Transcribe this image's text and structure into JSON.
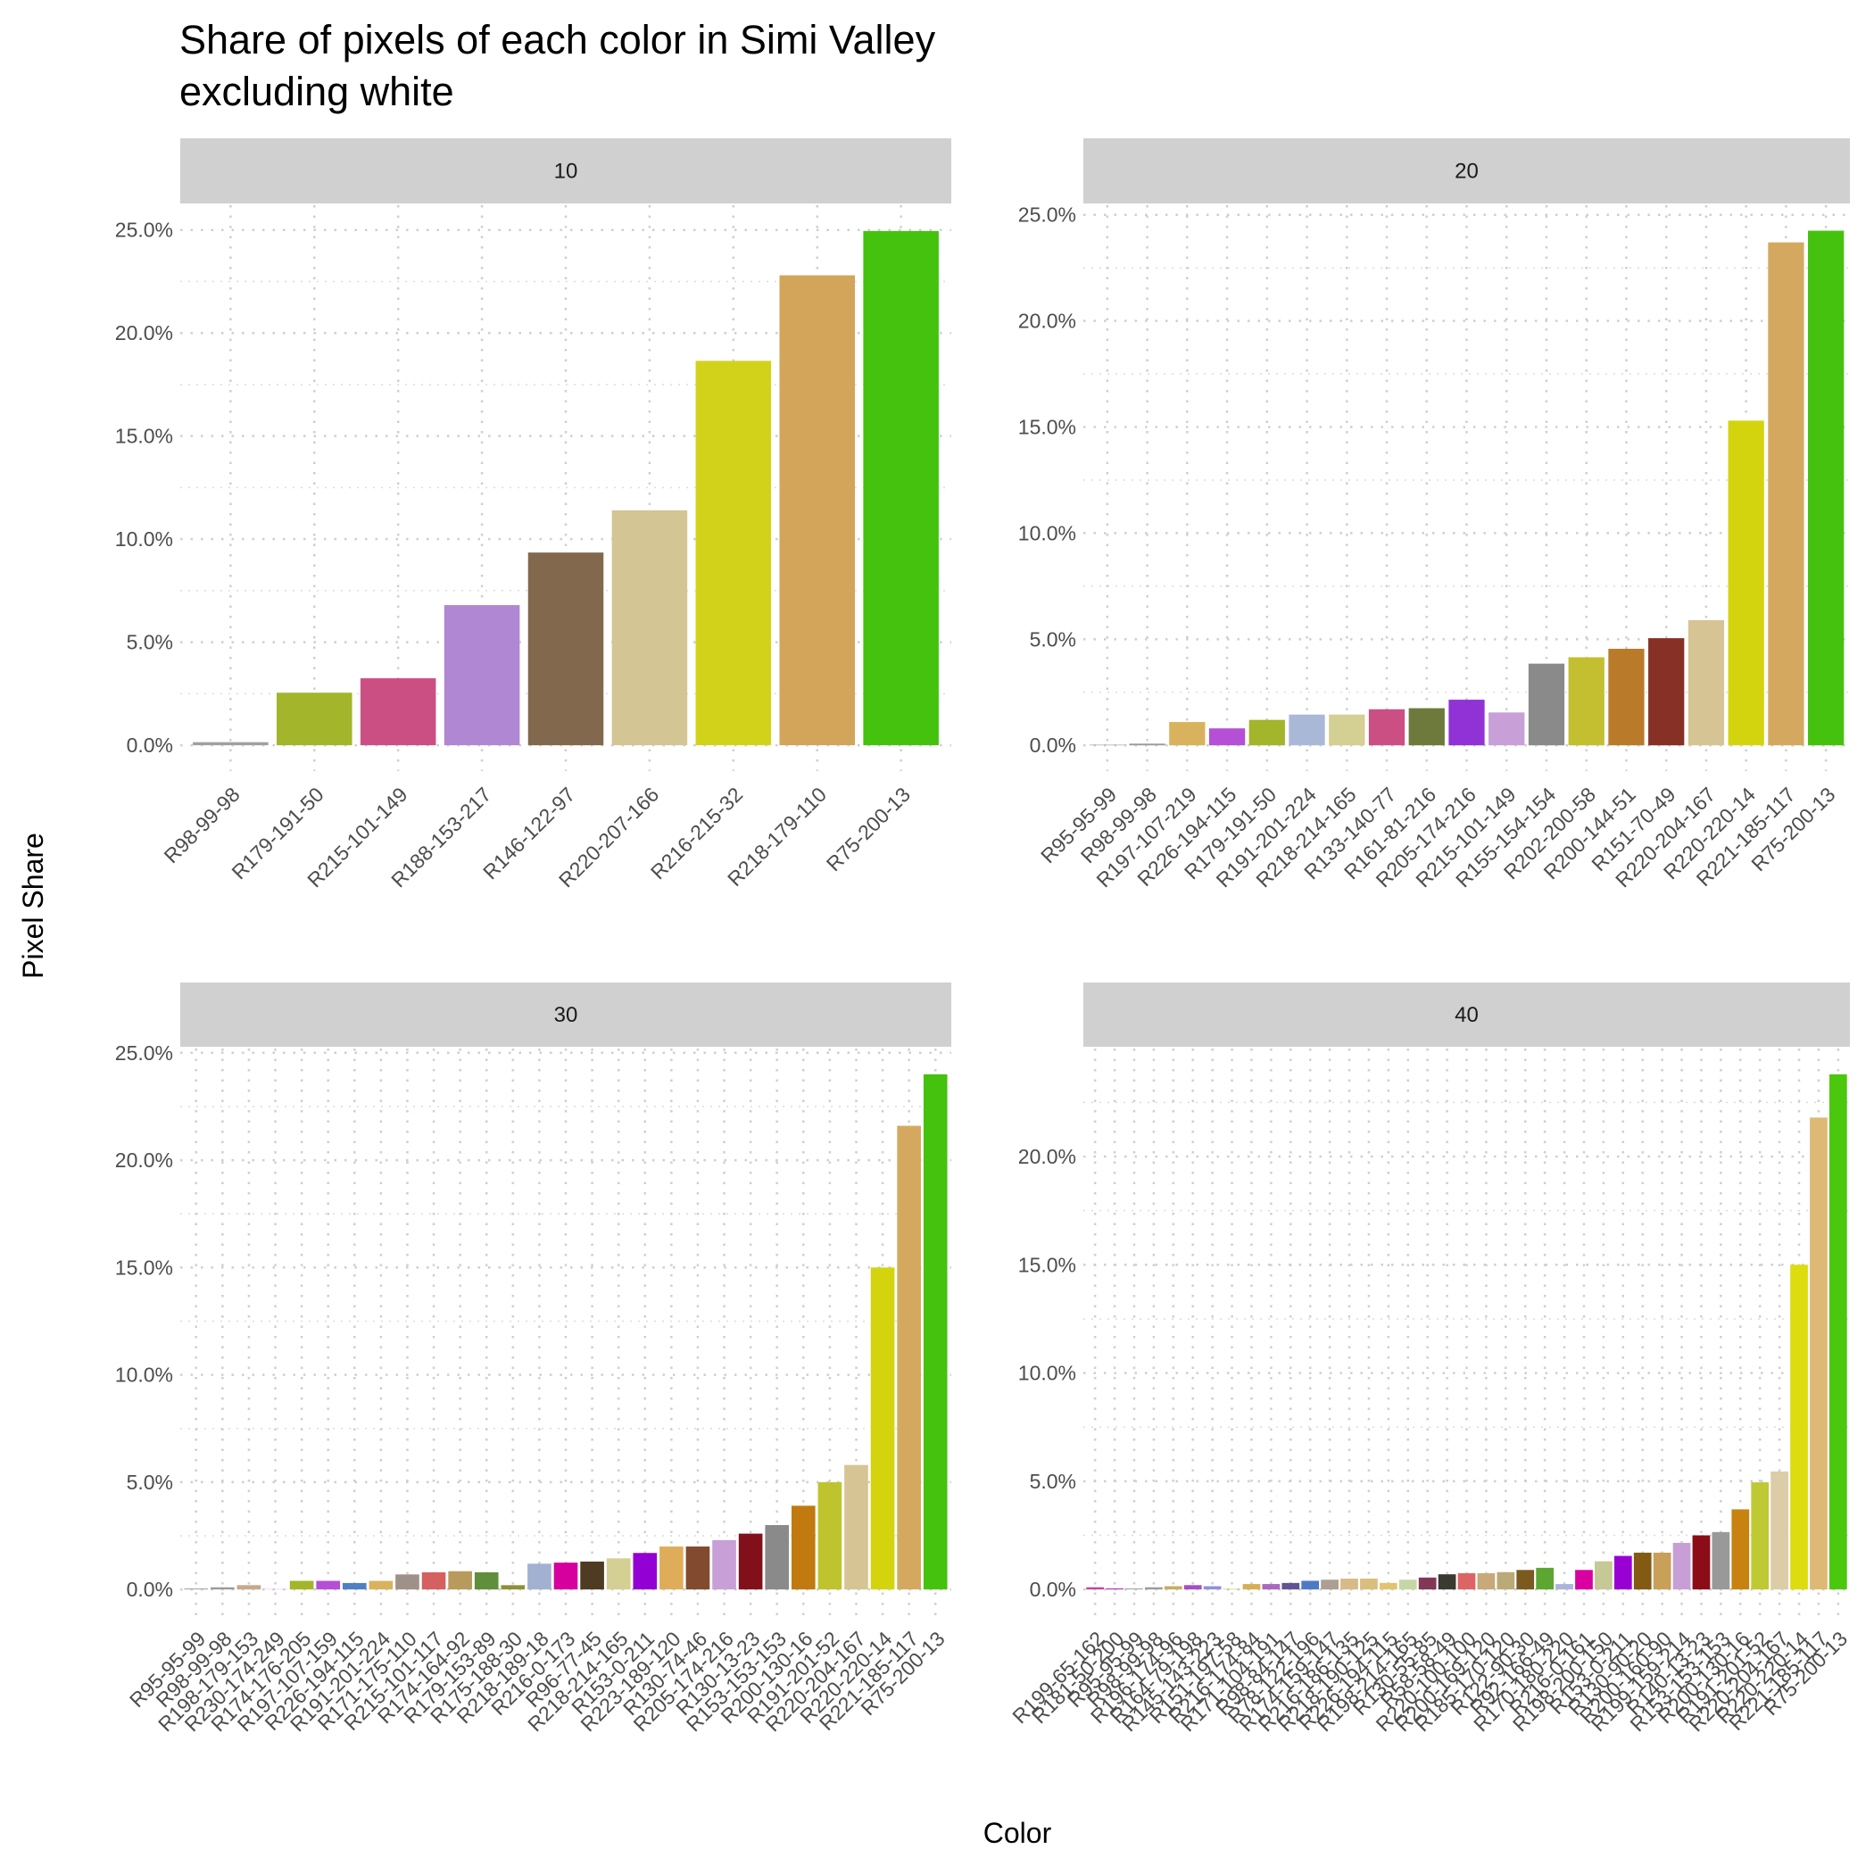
{
  "title": [
    "Share of pixels of each color in Simi Valley",
    "excluding white"
  ],
  "xlabel": "Color",
  "ylabel": "Pixel Share",
  "chart_data": [
    {
      "type": "bar",
      "facet": "10",
      "categories": [
        "R98-99-98",
        "R179-191-50",
        "R215-101-149",
        "R188-153-217",
        "R146-122-97",
        "R220-207-166",
        "R216-215-32",
        "R218-179-110",
        "R75-200-13"
      ],
      "values": [
        0.15,
        2.55,
        3.25,
        6.8,
        9.35,
        11.4,
        18.65,
        22.8,
        24.95
      ],
      "colors": [
        "#a0a0a0",
        "#a3b52a",
        "#cc4f84",
        "#af87d2",
        "#82684c",
        "#d4c595",
        "#d2d21b",
        "#d2a55a",
        "#45c20e"
      ],
      "ylim": [
        -1.25,
        26.2
      ],
      "yticks": [
        {
          "value": 0,
          "label": "0.0%"
        },
        {
          "value": 5,
          "label": "5.0%"
        },
        {
          "value": 10,
          "label": "10.0%"
        },
        {
          "value": 15,
          "label": "15.0%"
        },
        {
          "value": 20,
          "label": "20.0%"
        },
        {
          "value": 25,
          "label": "25.0%"
        }
      ],
      "y_minor_ticks": [
        2.5,
        7.5,
        12.5,
        17.5,
        22.5
      ],
      "grid": true
    },
    {
      "type": "bar",
      "facet": "20",
      "categories": [
        "R95-95-99",
        "R98-99-98",
        "R197-107-219",
        "R226-194-115",
        "R179-191-50",
        "R191-201-224",
        "R218-214-165",
        "R133-140-77",
        "R161-81-216",
        "R205-174-216",
        "R215-101-149",
        "R155-154-154",
        "R202-200-58",
        "R200-144-51",
        "R151-70-49",
        "R220-204-167",
        "R220-220-14",
        "R221-185-117",
        "R75-200-13"
      ],
      "values": [
        0.03,
        0.08,
        1.1,
        0.8,
        1.2,
        1.45,
        1.45,
        1.7,
        1.75,
        2.15,
        1.55,
        3.85,
        4.15,
        4.55,
        5.05,
        5.9,
        15.3,
        23.7,
        24.25
      ],
      "colors": [
        "#a8a8a8",
        "#9a9a9a",
        "#d9b25e",
        "#b44fd6",
        "#a3b52a",
        "#aab8d8",
        "#d4cf92",
        "#cc4f84",
        "#6e7a3b",
        "#9032d6",
        "#c89fd6",
        "#8a8a8a",
        "#c4bf30",
        "#b97b2a",
        "#863026",
        "#d6c494",
        "#d4d40e",
        "#d4a95f",
        "#45c20e"
      ],
      "ylim": [
        -1.21,
        25.45
      ],
      "yticks": [
        {
          "value": 0,
          "label": "0.0%"
        },
        {
          "value": 5,
          "label": "5.0%"
        },
        {
          "value": 10,
          "label": "10.0%"
        },
        {
          "value": 15,
          "label": "15.0%"
        },
        {
          "value": 20,
          "label": "20.0%"
        },
        {
          "value": 25,
          "label": "25.0%"
        }
      ],
      "y_minor_ticks": [
        2.5,
        7.5,
        12.5,
        17.5,
        22.5
      ],
      "grid": true
    },
    {
      "type": "bar",
      "facet": "30",
      "categories": [
        "R95-95-99",
        "R98-99-98",
        "R198-179-153",
        "R230-174-249",
        "R174-176-205",
        "R197-107-159",
        "R226-194-115",
        "R191-201-224",
        "R171-175-110",
        "R215-101-117",
        "R174-164-92",
        "R179-153-89",
        "R175-188-30",
        "R218-189-18",
        "R216-0-173",
        "R96-77-45",
        "R218-214-165",
        "R153-0-211",
        "R223-189-120",
        "R130-74-46",
        "R205-174-216",
        "R130-13-23",
        "R153-153-153",
        "R200-130-16",
        "R191-201-52",
        "R220-204-167",
        "R220-220-14",
        "R221-185-117",
        "R75-200-13"
      ],
      "values": [
        0.05,
        0.1,
        0.2,
        0.02,
        0.4,
        0.4,
        0.3,
        0.4,
        0.7,
        0.8,
        0.85,
        0.8,
        0.2,
        1.2,
        1.25,
        1.3,
        1.45,
        1.7,
        2.0,
        2.0,
        2.3,
        2.6,
        3.0,
        3.9,
        5.0,
        5.8,
        15.0,
        21.6,
        24.0
      ],
      "colors": [
        "#aaaaaa",
        "#9a9a9a",
        "#c6a98a",
        "#e6aef9",
        "#a3b52a",
        "#b44fd6",
        "#4f7fc4",
        "#d9b25e",
        "#a0908a",
        "#d65f5f",
        "#b89a5c",
        "#5f8f3a",
        "#8f8f3a",
        "#a2b0d2",
        "#d6009f",
        "#4f3a22",
        "#d4cf92",
        "#9300d3",
        "#dfad5a",
        "#824a2e",
        "#c89fd6",
        "#82101a",
        "#8a8a8a",
        "#c07a10",
        "#bfc42e",
        "#d6c494",
        "#d4d40e",
        "#d4a95f",
        "#45c20e"
      ],
      "ylim": [
        -1.2,
        25.2
      ],
      "yticks": [
        {
          "value": 0,
          "label": "0.0%"
        },
        {
          "value": 5,
          "label": "5.0%"
        },
        {
          "value": 10,
          "label": "10.0%"
        },
        {
          "value": 15,
          "label": "15.0%"
        },
        {
          "value": 20,
          "label": "20.0%"
        },
        {
          "value": 25,
          "label": "25.0%"
        }
      ],
      "y_minor_ticks": [
        2.5,
        7.5,
        12.5,
        17.5,
        22.5
      ],
      "grid": true
    },
    {
      "type": "bar",
      "facet": "40",
      "categories": [
        "R199-65-162",
        "R181-50-200",
        "R95-95-99",
        "R98-99-98",
        "R196-174-96",
        "R164-79-198",
        "R145-143-223",
        "R151-197-58",
        "R216-174-84",
        "R171-104-191",
        "R98-84-147",
        "R78-122-196",
        "R174-159-147",
        "R216-186-135",
        "R218-190-125",
        "R226-194-115",
        "R198-214-165",
        "R130-55-85",
        "R58-58-49",
        "R220-100-100",
        "R200-169-120",
        "R185-170-120",
        "R122-90-30",
        "R92-166-49",
        "R170-180-220",
        "R216-0-161",
        "R198-200-150",
        "R153-0-211",
        "R130-90-20",
        "R200-160-90",
        "R199-159-214",
        "R140-13-23",
        "R153-153-153",
        "R200-130-16",
        "R191-201-52",
        "R220-204-167",
        "R220-220-14",
        "R221-185-117",
        "R75-200-13"
      ],
      "values": [
        0.1,
        0.05,
        0.05,
        0.1,
        0.15,
        0.2,
        0.15,
        0.02,
        0.25,
        0.25,
        0.3,
        0.4,
        0.45,
        0.5,
        0.5,
        0.3,
        0.45,
        0.55,
        0.7,
        0.75,
        0.75,
        0.8,
        0.9,
        1.0,
        0.25,
        0.9,
        1.3,
        1.55,
        1.7,
        1.7,
        2.15,
        2.5,
        2.65,
        3.7,
        4.95,
        5.45,
        15.0,
        21.8,
        23.8
      ],
      "colors": [
        "#c7419f",
        "#b532c8",
        "#a8a8a8",
        "#9a9a9a",
        "#c4ae60",
        "#a44fc6",
        "#9190df",
        "#97c53a",
        "#d8ae54",
        "#ab68bf",
        "#625493",
        "#4e7ac4",
        "#ae9f93",
        "#d8ba87",
        "#dabe7d",
        "#e2c273",
        "#c6d6a5",
        "#823755",
        "#3a3a31",
        "#dc6464",
        "#c8a978",
        "#b9aa78",
        "#7a5a1e",
        "#5ca631",
        "#aab4dc",
        "#d800a1",
        "#c6c896",
        "#9900d3",
        "#825a14",
        "#c8a05a",
        "#c79fd6",
        "#8c0d17",
        "#999999",
        "#c88210",
        "#bfc934",
        "#dccca7",
        "#dcdc0e",
        "#ddb975",
        "#4bc80d"
      ],
      "ylim": [
        -1.19,
        24.99
      ],
      "yticks": [
        {
          "value": 0,
          "label": "0.0%"
        },
        {
          "value": 5,
          "label": "5.0%"
        },
        {
          "value": 10,
          "label": "10.0%"
        },
        {
          "value": 15,
          "label": "15.0%"
        },
        {
          "value": 20,
          "label": "20.0%"
        }
      ],
      "y_minor_ticks": [
        2.5,
        7.5,
        12.5,
        17.5,
        22.5
      ],
      "grid": true
    }
  ]
}
